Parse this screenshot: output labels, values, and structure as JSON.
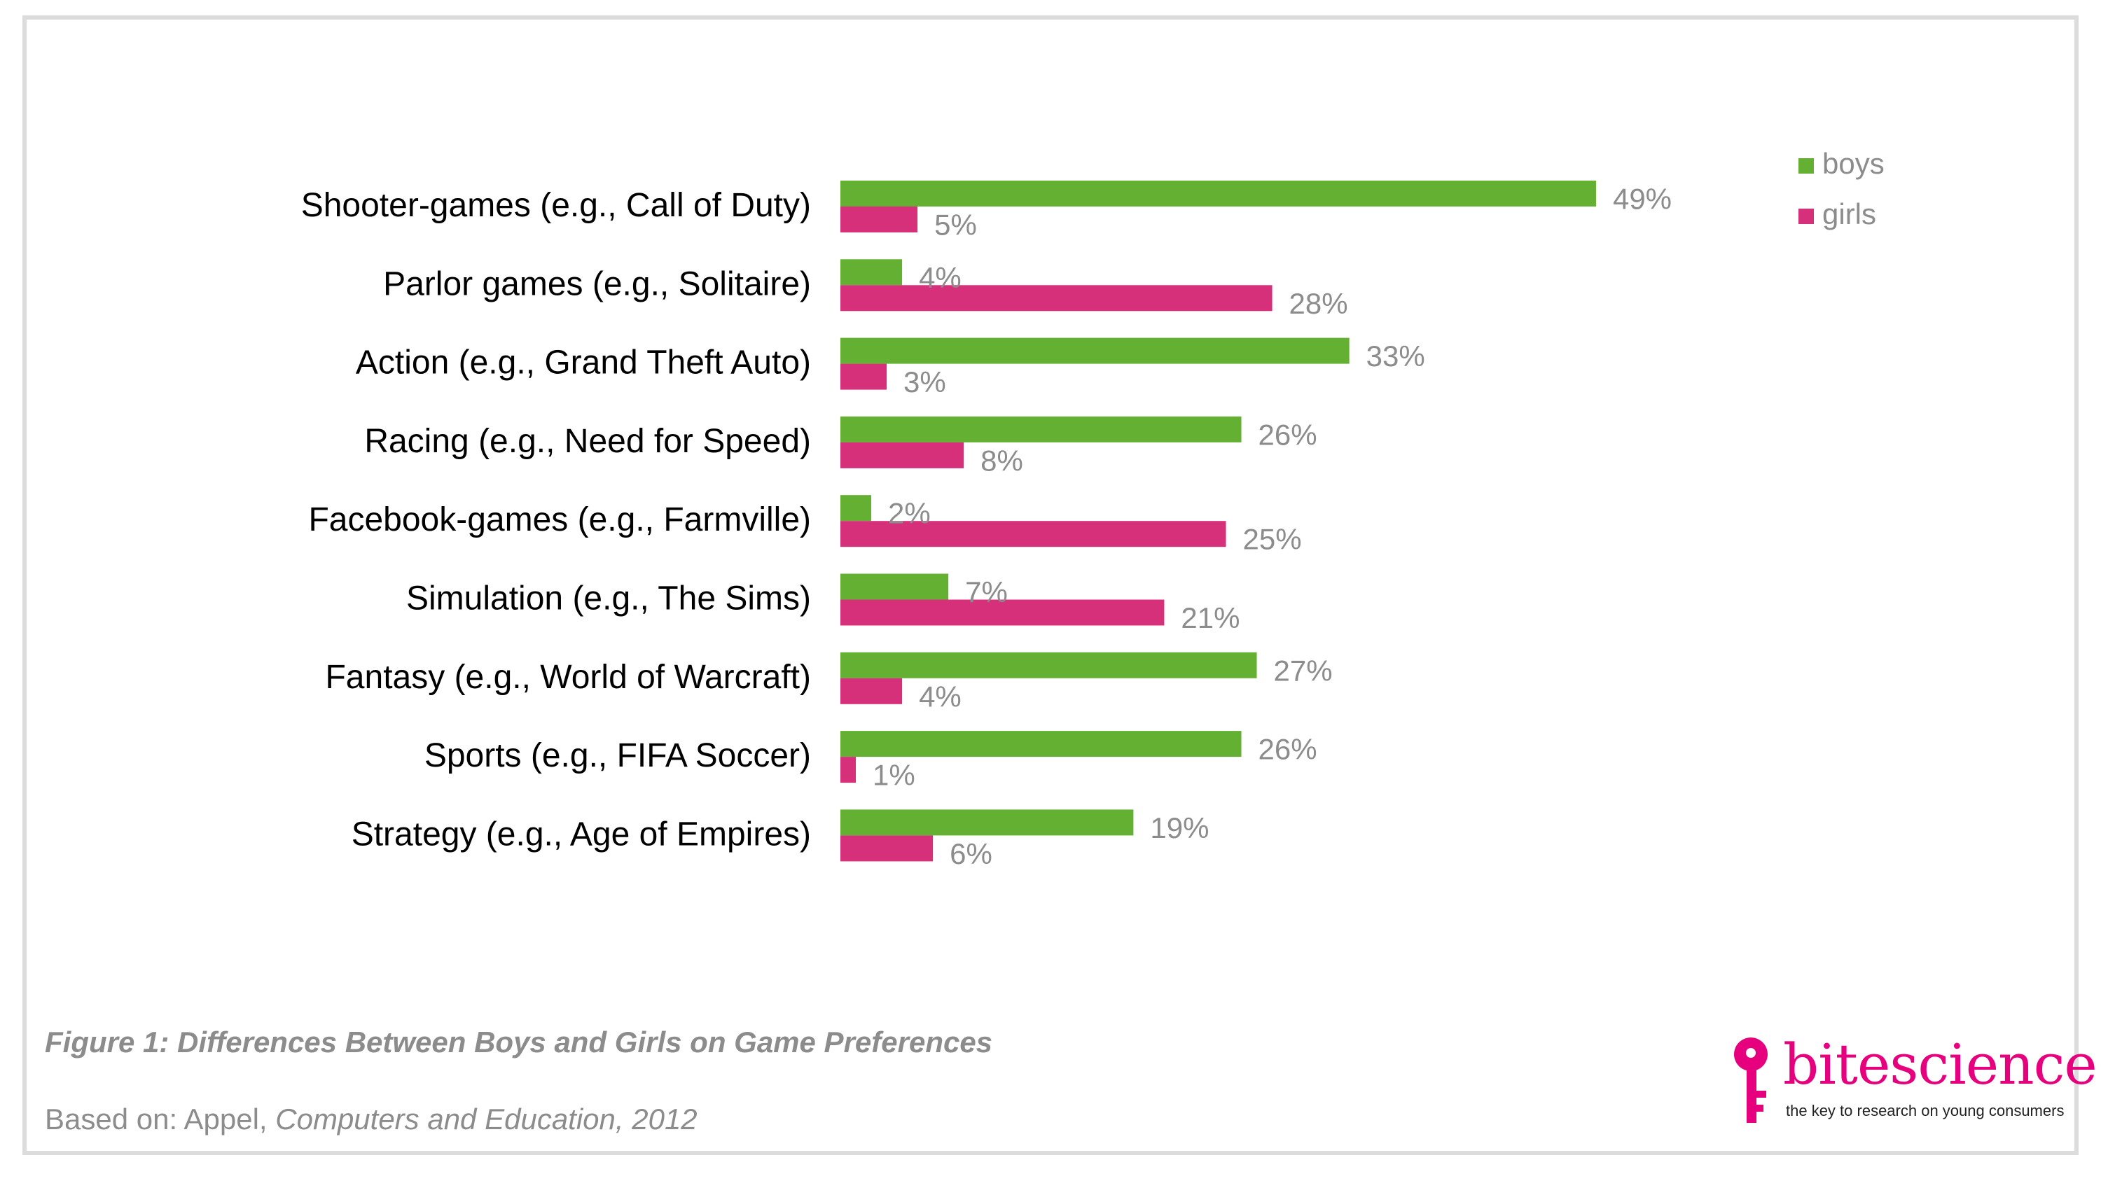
{
  "chart_data": {
    "type": "bar",
    "orientation": "horizontal",
    "categories": [
      "Shooter-games (e.g., Call of Duty)",
      "Parlor games (e.g., Solitaire)",
      "Action (e.g., Grand Theft Auto)",
      "Racing (e.g., Need for Speed)",
      "Facebook-games (e.g., Farmville)",
      "Simulation (e.g., The Sims)",
      "Fantasy (e.g., World of Warcraft)",
      "Sports (e.g., FIFA Soccer)",
      "Strategy (e.g., Age of Empires)"
    ],
    "series": [
      {
        "name": "boys",
        "color": "#63b032",
        "values": [
          49,
          4,
          33,
          26,
          2,
          7,
          27,
          26,
          19
        ]
      },
      {
        "name": "girls",
        "color": "#d6307a",
        "values": [
          5,
          28,
          3,
          8,
          25,
          21,
          4,
          1,
          6
        ]
      }
    ],
    "value_suffix": "%",
    "xlim": [
      0,
      49
    ],
    "grid": false,
    "legend_position": "top-right",
    "data_labels": true
  },
  "caption": "Figure 1: Differences Between Boys and Girls on Game Preferences",
  "source": {
    "prefix": "Based on: Appel, ",
    "italic": "Computers and Education, 2012"
  },
  "logo": {
    "name_part1": "bite",
    "name_part2": "science",
    "tagline": "the key to research on young consumers",
    "color": "#e6007e"
  }
}
